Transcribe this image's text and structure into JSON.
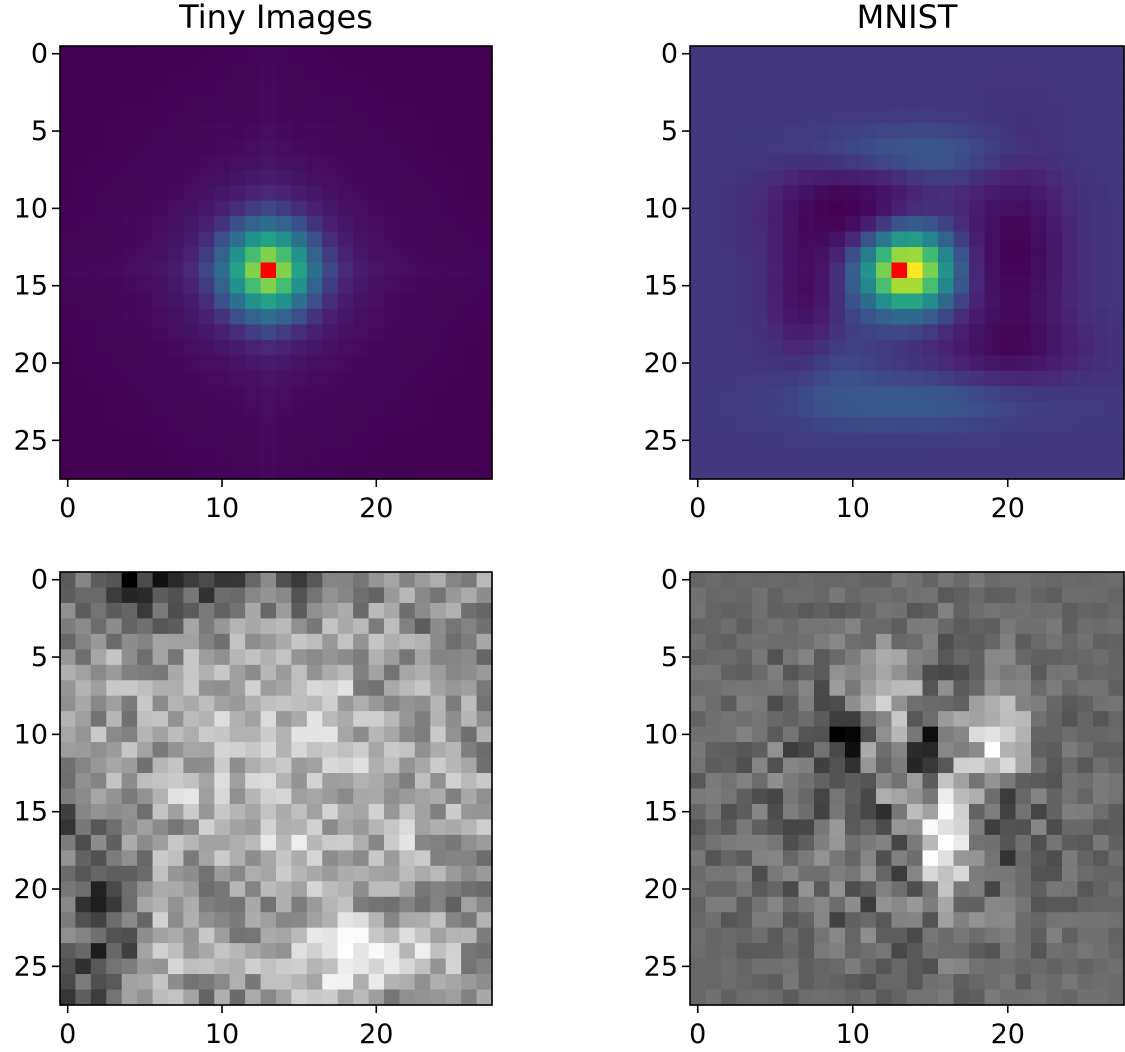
{
  "chart_data": [
    {
      "type": "heatmap",
      "title": "Tiny Images",
      "colormap": "viridis",
      "highlight_color": "#ff0000",
      "grid_size": 28,
      "pattern": "radial-peak",
      "peak": [
        13,
        14
      ],
      "xticks": [
        "0",
        "10",
        "20"
      ],
      "yticks": [
        "0",
        "5",
        "10",
        "15",
        "20",
        "25"
      ],
      "xlim": [
        -0.5,
        27.5
      ],
      "ylim": [
        27.5,
        -0.5
      ],
      "grid": false
    },
    {
      "type": "heatmap",
      "title": "MNIST",
      "colormap": "viridis",
      "highlight_color": "#ff0000",
      "grid_size": 28,
      "pattern": "peak-with-negative-lobes",
      "peak": [
        13,
        14
      ],
      "xticks": [
        "0",
        "10",
        "20"
      ],
      "yticks": [
        "0",
        "5",
        "10",
        "15",
        "20",
        "25"
      ],
      "xlim": [
        -0.5,
        27.5
      ],
      "ylim": [
        27.5,
        -0.5
      ],
      "grid": false
    },
    {
      "type": "heatmap",
      "title": "",
      "colormap": "gray",
      "grid_size": 28,
      "pattern": "noisy-natural-texture",
      "xticks": [
        "0",
        "10",
        "20"
      ],
      "yticks": [
        "0",
        "5",
        "10",
        "15",
        "20",
        "25"
      ],
      "xlim": [
        -0.5,
        27.5
      ],
      "ylim": [
        27.5,
        -0.5
      ],
      "grid": false
    },
    {
      "type": "heatmap",
      "title": "",
      "colormap": "gray",
      "grid_size": 28,
      "pattern": "digit-like-strokes",
      "xticks": [
        "0",
        "10",
        "20"
      ],
      "yticks": [
        "0",
        "5",
        "10",
        "15",
        "20",
        "25"
      ],
      "xlim": [
        -0.5,
        27.5
      ],
      "ylim": [
        27.5,
        -0.5
      ],
      "grid": false
    }
  ]
}
